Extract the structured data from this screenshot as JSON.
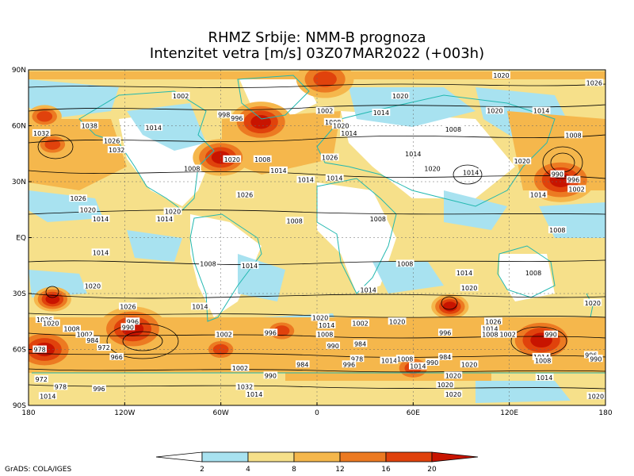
{
  "title": {
    "line1": "RHMZ Srbije: NMM-B prognoza",
    "line2": "Intenzitet vetra [m/s] 03Z07MAR2022 (+003h)"
  },
  "credit": "GrADS: COLA/IGES",
  "axes": {
    "y_ticks": [
      "90N",
      "60N",
      "30N",
      "EQ",
      "30S",
      "60S",
      "90S"
    ],
    "x_ticks": [
      "180",
      "120W",
      "60W",
      "0",
      "60E",
      "120E",
      "180"
    ]
  },
  "colorbar": {
    "labels": [
      "2",
      "4",
      "8",
      "12",
      "16",
      "20"
    ],
    "colors": [
      "#ffffff",
      "#a8e2f0",
      "#f6e08a",
      "#f5b74c",
      "#ec7a22",
      "#e0420c",
      "#c81400"
    ]
  },
  "colors": {
    "calm": "#ffffff",
    "light": "#a8e2f0",
    "moderate": "#f6e08a",
    "fresh": "#f5b74c",
    "strong": "#ec7a22",
    "gale": "#e0420c",
    "storm": "#c81400",
    "coast": "#22b8b0",
    "isobar": "#000000"
  },
  "pressure_labels": [
    {
      "text": "1002",
      "lon": -85,
      "lat": 76
    },
    {
      "text": "998",
      "lon": -58,
      "lat": 66
    },
    {
      "text": "996",
      "lon": -50,
      "lat": 64
    },
    {
      "text": "1002",
      "lon": 5,
      "lat": 68
    },
    {
      "text": "1008",
      "lon": 10,
      "lat": 62
    },
    {
      "text": "1014",
      "lon": 20,
      "lat": 56
    },
    {
      "text": "1020",
      "lon": 15,
      "lat": 60
    },
    {
      "text": "1020",
      "lon": 115,
      "lat": 87
    },
    {
      "text": "1026",
      "lon": 173,
      "lat": 83
    },
    {
      "text": "1014",
      "lon": 140,
      "lat": 68
    },
    {
      "text": "1020",
      "lon": 111,
      "lat": 68
    },
    {
      "text": "1008",
      "lon": 160,
      "lat": 55
    },
    {
      "text": "1014",
      "lon": 40,
      "lat": 67
    },
    {
      "text": "1020",
      "lon": 52,
      "lat": 76
    },
    {
      "text": "1008",
      "lon": 85,
      "lat": 58
    },
    {
      "text": "1014",
      "lon": 60,
      "lat": 45
    },
    {
      "text": "1020",
      "lon": 72,
      "lat": 37
    },
    {
      "text": "1014",
      "lon": 96,
      "lat": 35
    },
    {
      "text": "1020",
      "lon": 128,
      "lat": 41
    },
    {
      "text": "990",
      "lon": 150,
      "lat": 34
    },
    {
      "text": "996",
      "lon": 160,
      "lat": 31
    },
    {
      "text": "1002",
      "lon": 162,
      "lat": 26
    },
    {
      "text": "1014",
      "lon": 138,
      "lat": 23
    },
    {
      "text": "1032",
      "lon": -172,
      "lat": 56
    },
    {
      "text": "1038",
      "lon": -142,
      "lat": 60
    },
    {
      "text": "1026",
      "lon": -128,
      "lat": 52
    },
    {
      "text": "1032",
      "lon": -125,
      "lat": 47
    },
    {
      "text": "1014",
      "lon": -102,
      "lat": 59
    },
    {
      "text": "1008",
      "lon": -78,
      "lat": 37
    },
    {
      "text": "1020",
      "lon": -53,
      "lat": 42
    },
    {
      "text": "1008",
      "lon": -34,
      "lat": 42
    },
    {
      "text": "1014",
      "lon": -24,
      "lat": 36
    },
    {
      "text": "1014",
      "lon": -7,
      "lat": 31
    },
    {
      "text": "1026",
      "lon": 8,
      "lat": 43
    },
    {
      "text": "1014",
      "lon": 11,
      "lat": 32
    },
    {
      "text": "1026",
      "lon": -45,
      "lat": 23
    },
    {
      "text": "1020",
      "lon": -90,
      "lat": 14
    },
    {
      "text": "1014",
      "lon": -95,
      "lat": 10
    },
    {
      "text": "1008",
      "lon": -14,
      "lat": 9
    },
    {
      "text": "1008",
      "lon": 38,
      "lat": 10
    },
    {
      "text": "1026",
      "lon": -149,
      "lat": 21
    },
    {
      "text": "1020",
      "lon": -143,
      "lat": 15
    },
    {
      "text": "1014",
      "lon": -135,
      "lat": 10
    },
    {
      "text": "1008",
      "lon": 150,
      "lat": 4
    },
    {
      "text": "1014",
      "lon": -135,
      "lat": -8
    },
    {
      "text": "1008",
      "lon": -68,
      "lat": -14
    },
    {
      "text": "1014",
      "lon": -42,
      "lat": -15
    },
    {
      "text": "1008",
      "lon": 55,
      "lat": -14
    },
    {
      "text": "1014",
      "lon": 92,
      "lat": -19
    },
    {
      "text": "1008",
      "lon": 135,
      "lat": -19
    },
    {
      "text": "1014",
      "lon": 32,
      "lat": -28
    },
    {
      "text": "1020",
      "lon": 95,
      "lat": -27
    },
    {
      "text": "1020",
      "lon": -140,
      "lat": -26
    },
    {
      "text": "1026",
      "lon": -118,
      "lat": -37
    },
    {
      "text": "1020",
      "lon": 172,
      "lat": -35
    },
    {
      "text": "1014",
      "lon": -73,
      "lat": -37
    },
    {
      "text": "1020",
      "lon": 2,
      "lat": -43
    },
    {
      "text": "1014",
      "lon": 6,
      "lat": -47
    },
    {
      "text": "1002",
      "lon": 27,
      "lat": -46
    },
    {
      "text": "1020",
      "lon": 50,
      "lat": -45
    },
    {
      "text": "1026",
      "lon": 110,
      "lat": -45
    },
    {
      "text": "1014",
      "lon": 108,
      "lat": -49
    },
    {
      "text": "1008",
      "lon": 108,
      "lat": -52
    },
    {
      "text": "1002",
      "lon": 119,
      "lat": -52
    },
    {
      "text": "990",
      "lon": 146,
      "lat": -52
    },
    {
      "text": "1008",
      "lon": 5,
      "lat": -52
    },
    {
      "text": "996",
      "lon": 80,
      "lat": -51
    },
    {
      "text": "1026",
      "lon": -170,
      "lat": -44
    },
    {
      "text": "1020",
      "lon": -166,
      "lat": -46
    },
    {
      "text": "1008",
      "lon": -153,
      "lat": -49
    },
    {
      "text": "1002",
      "lon": -145,
      "lat": -52
    },
    {
      "text": "996",
      "lon": -115,
      "lat": -45
    },
    {
      "text": "990",
      "lon": -118,
      "lat": -48
    },
    {
      "text": "984",
      "lon": -140,
      "lat": -55
    },
    {
      "text": "972",
      "lon": -133,
      "lat": -59
    },
    {
      "text": "978",
      "lon": -173,
      "lat": -60
    },
    {
      "text": "966",
      "lon": -125,
      "lat": -64
    },
    {
      "text": "996",
      "lon": -29,
      "lat": -51
    },
    {
      "text": "1002",
      "lon": -58,
      "lat": -52
    },
    {
      "text": "990",
      "lon": 10,
      "lat": -58
    },
    {
      "text": "984",
      "lon": 27,
      "lat": -57
    },
    {
      "text": "984",
      "lon": -9,
      "lat": -68
    },
    {
      "text": "978",
      "lon": 25,
      "lat": -65
    },
    {
      "text": "996",
      "lon": 20,
      "lat": -68
    },
    {
      "text": "1014",
      "lon": 45,
      "lat": -66
    },
    {
      "text": "1008",
      "lon": 55,
      "lat": -65
    },
    {
      "text": "1014",
      "lon": 63,
      "lat": -69
    },
    {
      "text": "990",
      "lon": 72,
      "lat": -67
    },
    {
      "text": "984",
      "lon": 80,
      "lat": -64
    },
    {
      "text": "1020",
      "lon": 95,
      "lat": -68
    },
    {
      "text": "1014",
      "lon": 140,
      "lat": -64
    },
    {
      "text": "1008",
      "lon": 141,
      "lat": -66
    },
    {
      "text": "996",
      "lon": 171,
      "lat": -63
    },
    {
      "text": "990",
      "lon": 174,
      "lat": -65
    },
    {
      "text": "1020",
      "lon": 85,
      "lat": -74
    },
    {
      "text": "1002",
      "lon": -48,
      "lat": -70
    },
    {
      "text": "990",
      "lon": -29,
      "lat": -74
    },
    {
      "text": "1014",
      "lon": 142,
      "lat": -75
    },
    {
      "text": "972",
      "lon": -172,
      "lat": -76
    },
    {
      "text": "978",
      "lon": -160,
      "lat": -80
    },
    {
      "text": "996",
      "lon": -136,
      "lat": -81
    },
    {
      "text": "1032",
      "lon": -45,
      "lat": -80
    },
    {
      "text": "1014",
      "lon": -39,
      "lat": -84
    },
    {
      "text": "1020",
      "lon": 80,
      "lat": -79
    },
    {
      "text": "1020",
      "lon": 85,
      "lat": -84
    },
    {
      "text": "1014",
      "lon": -168,
      "lat": -85
    },
    {
      "text": "1020",
      "lon": 174,
      "lat": -85
    }
  ],
  "wind_cores": [
    {
      "lon": 152,
      "lat": 31,
      "r": 1.0,
      "level": 5
    },
    {
      "lon": -35,
      "lat": 62,
      "r": 0.9,
      "level": 5
    },
    {
      "lon": -60,
      "lat": 43,
      "r": 0.8,
      "level": 5
    },
    {
      "lon": 5,
      "lat": 85,
      "r": 1.1,
      "level": 4
    },
    {
      "lon": -115,
      "lat": -49,
      "r": 1.0,
      "level": 5
    },
    {
      "lon": -170,
      "lat": -60,
      "r": 0.9,
      "level": 5
    },
    {
      "lon": 140,
      "lat": -55,
      "r": 1.0,
      "level": 5
    },
    {
      "lon": -165,
      "lat": 50,
      "r": 0.6,
      "level": 4
    },
    {
      "lon": -165,
      "lat": -33,
      "r": 0.5,
      "level": 5
    },
    {
      "lon": 83,
      "lat": -37,
      "r": 0.5,
      "level": 5
    },
    {
      "lon": -22,
      "lat": -50,
      "r": 0.6,
      "level": 4
    },
    {
      "lon": 60,
      "lat": -70,
      "r": 0.7,
      "level": 4
    },
    {
      "lon": -170,
      "lat": 65,
      "r": 0.6,
      "level": 4
    },
    {
      "lon": -60,
      "lat": -60,
      "r": 0.6,
      "level": 4
    }
  ]
}
